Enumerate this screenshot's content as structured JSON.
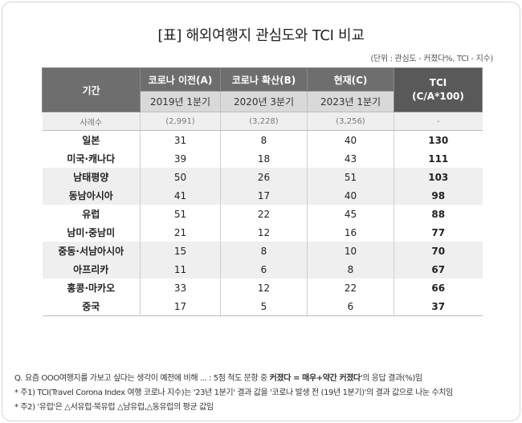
{
  "title": "[표] 해외여행지 관심도와 TCI 비교",
  "unit": "(단위 : 관심도 - 커졌다%, TCI - 지수)",
  "table": {
    "header": {
      "period": "기간",
      "col1_top": "코로나 이전(A)",
      "col2_top": "코로나 확산(B)",
      "col3_top": "현재(C)",
      "col1_sub": "2019년 1분기",
      "col2_sub": "2020년 3분기",
      "col3_sub": "2023년 1분기",
      "tci_line1": "TCI",
      "tci_line2": "(C/A*100)"
    },
    "sample": {
      "label": "사례수",
      "a": "(2,991)",
      "b": "(3,228)",
      "c": "(3,256)",
      "tci": "-"
    },
    "rows": [
      {
        "name": "일본",
        "a": "31",
        "b": "8",
        "c": "40",
        "tci": "130"
      },
      {
        "name": "미국·캐나다",
        "a": "39",
        "b": "18",
        "c": "43",
        "tci": "111"
      },
      {
        "name": "남태평양",
        "a": "50",
        "b": "26",
        "c": "51",
        "tci": "103"
      },
      {
        "name": "동남아시아",
        "a": "41",
        "b": "17",
        "c": "40",
        "tci": "98"
      },
      {
        "name": "유럽",
        "a": "51",
        "b": "22",
        "c": "45",
        "tci": "88"
      },
      {
        "name": "남미·중남미",
        "a": "21",
        "b": "12",
        "c": "16",
        "tci": "77"
      },
      {
        "name": "중동·서남아시아",
        "a": "15",
        "b": "8",
        "c": "10",
        "tci": "70"
      },
      {
        "name": "아프리카",
        "a": "11",
        "b": "6",
        "c": "8",
        "tci": "67"
      },
      {
        "name": "홍콩·마카오",
        "a": "33",
        "b": "12",
        "c": "22",
        "tci": "66"
      },
      {
        "name": "중국",
        "a": "17",
        "b": "5",
        "c": "6",
        "tci": "37"
      }
    ]
  },
  "notes": {
    "q_pre": "Q. 요즘 OOO여행지를 가보고 싶다는 생각이 예전에 비해 ... : 5점 척도 문항 중 ",
    "q_bold": "커졌다 = 매우+약간 커졌다",
    "q_post": "'의 응답 결과(%)임",
    "q_quote": "'",
    "note1": "* 주1) TCI(Travel Corona Index 여행 코로나 지수)는 '23년 1분기' 결과 값을 '코로나 발생 전 (19년 1분기)'의 결과 값으로 나눈 수치임",
    "note2": "* 주2) '유럽'은 △서유럽·북유럽 △남유럽,△동유럽의 평균 값임"
  }
}
